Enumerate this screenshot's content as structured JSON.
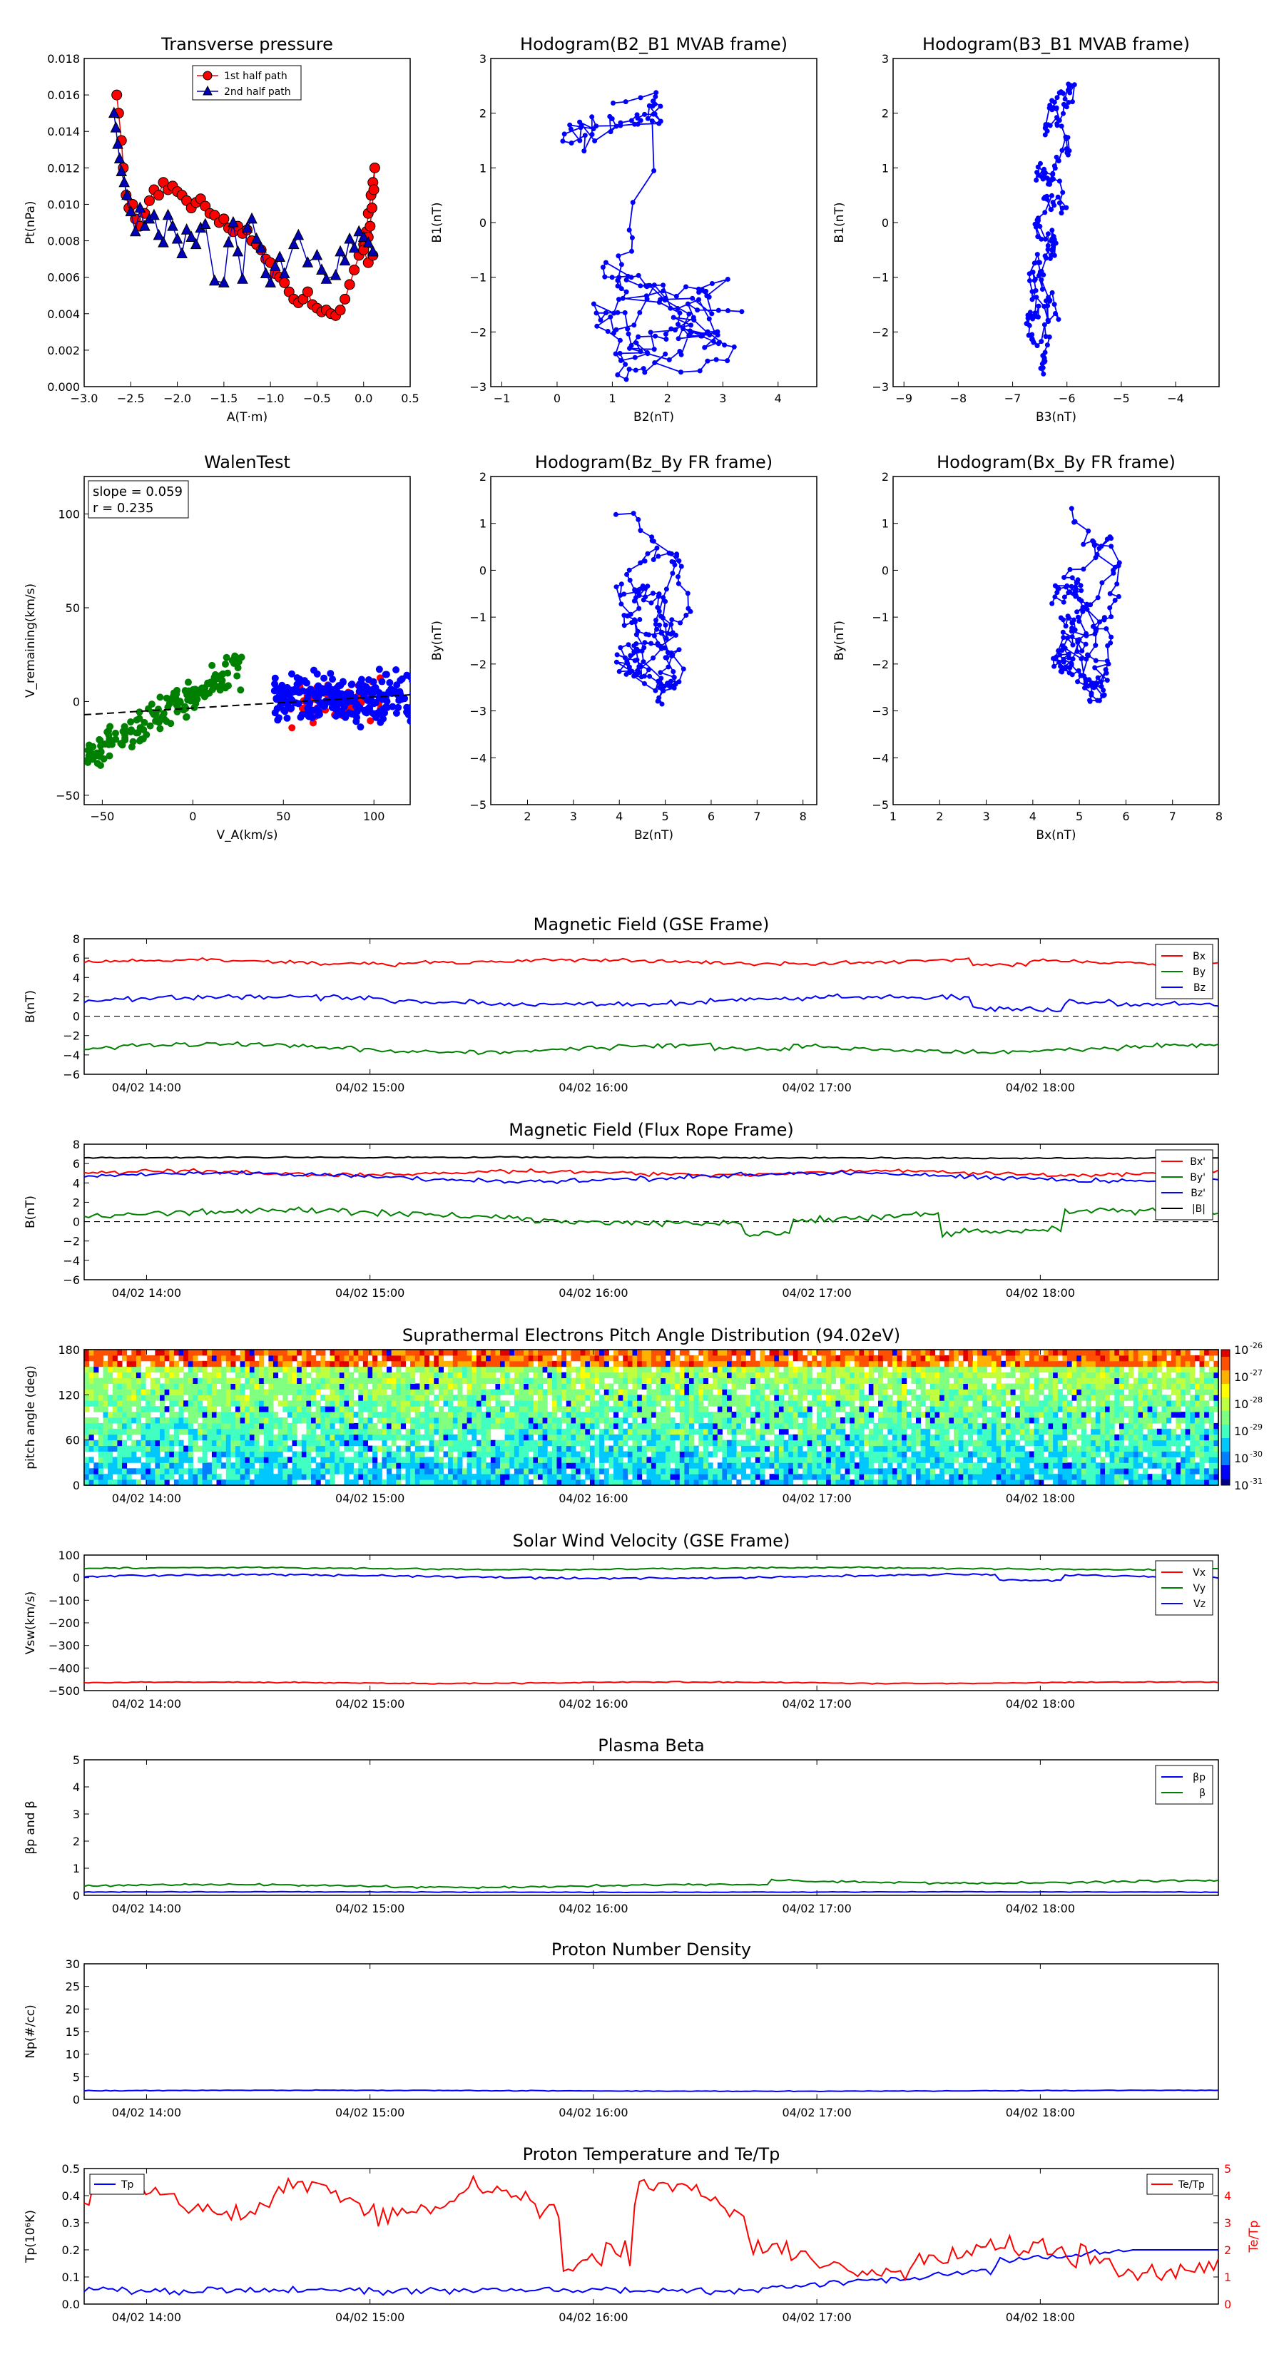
{
  "time_ticks": [
    "04/02 14:00",
    "04/02 15:00",
    "04/02 16:00",
    "04/02 17:00",
    "04/02 18:00"
  ],
  "chart_data": [
    {
      "id": "pt",
      "type": "scatter",
      "title": "Transverse pressure",
      "xlabel": "A(T·m)",
      "ylabel": "Pt(nPa)",
      "xlim": [
        -3.0,
        0.5
      ],
      "ylim": [
        0,
        0.018
      ],
      "xticks": [
        "−3.0",
        "−2.5",
        "−2.0",
        "−1.5",
        "−1.0",
        "−0.5",
        "0.0",
        "0.5"
      ],
      "yticks": [
        "0.000",
        "0.002",
        "0.004",
        "0.006",
        "0.008",
        "0.010",
        "0.012",
        "0.014",
        "0.016",
        "0.018"
      ],
      "legend": "upper center",
      "series": [
        {
          "name": "1st half path",
          "color": "#ff0000",
          "edge": "#000000",
          "marker": "circle",
          "points": [
            [
              -2.65,
              0.016
            ],
            [
              -2.63,
              0.015
            ],
            [
              -2.6,
              0.0135
            ],
            [
              -2.58,
              0.012
            ],
            [
              -2.55,
              0.0105
            ],
            [
              -2.52,
              0.0098
            ],
            [
              -2.48,
              0.01
            ],
            [
              -2.45,
              0.0092
            ],
            [
              -2.4,
              0.0088
            ],
            [
              -2.35,
              0.0095
            ],
            [
              -2.3,
              0.0102
            ],
            [
              -2.25,
              0.0108
            ],
            [
              -2.2,
              0.0105
            ],
            [
              -2.15,
              0.0112
            ],
            [
              -2.1,
              0.0108
            ],
            [
              -2.05,
              0.011
            ],
            [
              -2.0,
              0.0107
            ],
            [
              -1.95,
              0.0105
            ],
            [
              -1.9,
              0.0102
            ],
            [
              -1.85,
              0.0098
            ],
            [
              -1.8,
              0.0101
            ],
            [
              -1.75,
              0.0103
            ],
            [
              -1.7,
              0.0099
            ],
            [
              -1.65,
              0.0095
            ],
            [
              -1.6,
              0.0094
            ],
            [
              -1.55,
              0.009
            ],
            [
              -1.5,
              0.0092
            ],
            [
              -1.45,
              0.0087
            ],
            [
              -1.4,
              0.0085
            ],
            [
              -1.35,
              0.0088
            ],
            [
              -1.3,
              0.0084
            ],
            [
              -1.25,
              0.0086
            ],
            [
              -1.2,
              0.008
            ],
            [
              -1.15,
              0.0078
            ],
            [
              -1.1,
              0.0075
            ],
            [
              -1.05,
              0.007
            ],
            [
              -1.0,
              0.0068
            ],
            [
              -0.95,
              0.0062
            ],
            [
              -0.9,
              0.006
            ],
            [
              -0.85,
              0.0057
            ],
            [
              -0.8,
              0.0052
            ],
            [
              -0.75,
              0.0048
            ],
            [
              -0.7,
              0.0046
            ],
            [
              -0.65,
              0.0048
            ],
            [
              -0.6,
              0.0052
            ],
            [
              -0.55,
              0.0045
            ],
            [
              -0.5,
              0.0043
            ],
            [
              -0.45,
              0.0041
            ],
            [
              -0.4,
              0.0042
            ],
            [
              -0.35,
              0.004
            ],
            [
              -0.3,
              0.0039
            ],
            [
              -0.25,
              0.0042
            ],
            [
              -0.2,
              0.0048
            ],
            [
              -0.15,
              0.0056
            ],
            [
              -0.1,
              0.0064
            ],
            [
              -0.05,
              0.0072
            ],
            [
              0.0,
              0.0078
            ],
            [
              0.03,
              0.0085
            ],
            [
              0.05,
              0.0095
            ],
            [
              0.08,
              0.0105
            ],
            [
              0.1,
              0.0112
            ],
            [
              0.12,
              0.012
            ],
            [
              0.11,
              0.0108
            ],
            [
              0.09,
              0.0098
            ],
            [
              0.07,
              0.0088
            ],
            [
              0.05,
              0.0082
            ],
            [
              0.02,
              0.0078
            ],
            [
              0.0,
              0.0075
            ],
            [
              0.05,
              0.0068
            ],
            [
              0.1,
              0.0072
            ]
          ]
        },
        {
          "name": "2nd half path",
          "color": "#0000bb",
          "edge": "#000000",
          "marker": "triangle",
          "points": [
            [
              -2.68,
              0.015
            ],
            [
              -2.66,
              0.0142
            ],
            [
              -2.64,
              0.0133
            ],
            [
              -2.62,
              0.0125
            ],
            [
              -2.6,
              0.0118
            ],
            [
              -2.57,
              0.0112
            ],
            [
              -2.54,
              0.0105
            ],
            [
              -2.5,
              0.0096
            ],
            [
              -2.45,
              0.0085
            ],
            [
              -2.4,
              0.0098
            ],
            [
              -2.35,
              0.0088
            ],
            [
              -2.3,
              0.0092
            ],
            [
              -2.25,
              0.0094
            ],
            [
              -2.2,
              0.0083
            ],
            [
              -2.15,
              0.0079
            ],
            [
              -2.1,
              0.0094
            ],
            [
              -2.05,
              0.0088
            ],
            [
              -2.0,
              0.0081
            ],
            [
              -1.95,
              0.0073
            ],
            [
              -1.9,
              0.0086
            ],
            [
              -1.85,
              0.0082
            ],
            [
              -1.8,
              0.0078
            ],
            [
              -1.75,
              0.0087
            ],
            [
              -1.7,
              0.0089
            ],
            [
              -1.6,
              0.0058
            ],
            [
              -1.5,
              0.0057
            ],
            [
              -1.45,
              0.0079
            ],
            [
              -1.4,
              0.009
            ],
            [
              -1.35,
              0.0074
            ],
            [
              -1.3,
              0.0059
            ],
            [
              -1.25,
              0.0087
            ],
            [
              -1.2,
              0.0092
            ],
            [
              -1.15,
              0.0081
            ],
            [
              -1.1,
              0.0076
            ],
            [
              -1.05,
              0.0062
            ],
            [
              -1.0,
              0.0057
            ],
            [
              -0.95,
              0.0066
            ],
            [
              -0.9,
              0.0071
            ],
            [
              -0.85,
              0.0062
            ],
            [
              -0.75,
              0.0078
            ],
            [
              -0.7,
              0.0083
            ],
            [
              -0.6,
              0.0068
            ],
            [
              -0.5,
              0.0072
            ],
            [
              -0.45,
              0.0064
            ],
            [
              -0.4,
              0.0059
            ],
            [
              -0.3,
              0.0061
            ],
            [
              -0.25,
              0.0074
            ],
            [
              -0.2,
              0.0069
            ],
            [
              -0.15,
              0.0081
            ],
            [
              -0.1,
              0.0076
            ],
            [
              -0.05,
              0.0085
            ],
            [
              0.0,
              0.0082
            ],
            [
              0.05,
              0.0079
            ],
            [
              0.1,
              0.0074
            ]
          ]
        }
      ]
    },
    {
      "id": "h21",
      "type": "line",
      "title": "Hodogram(B2_B1 MVAB frame)",
      "xlabel": "B2(nT)",
      "ylabel": "B1(nT)",
      "xlim": [
        -1.2,
        4.7
      ],
      "ylim": [
        -3,
        3
      ],
      "xticks": [
        "−1",
        "0",
        "1",
        "2",
        "3",
        "4"
      ],
      "yticks": [
        "−3",
        "−2",
        "−1",
        "0",
        "1",
        "2",
        "3"
      ],
      "color": "#0000ff"
    },
    {
      "id": "h31",
      "type": "line",
      "title": "Hodogram(B3_B1 MVAB frame)",
      "xlabel": "B3(nT)",
      "ylabel": "B1(nT)",
      "xlim": [
        -9.2,
        -3.2
      ],
      "ylim": [
        -3,
        3
      ],
      "xticks": [
        "−9",
        "−8",
        "−7",
        "−6",
        "−5",
        "−4"
      ],
      "yticks": [
        "−3",
        "−2",
        "−1",
        "0",
        "1",
        "2",
        "3"
      ],
      "color": "#0000ff"
    },
    {
      "id": "walen",
      "type": "scatter",
      "title": "WalenTest",
      "xlabel": "V_A(km/s)",
      "ylabel": "V_remaining(km/s)",
      "xlim": [
        -60,
        120
      ],
      "ylim": [
        -55,
        120
      ],
      "xticks": [
        "−50",
        "0",
        "50",
        "100"
      ],
      "yticks": [
        "−50",
        "0",
        "50",
        "100"
      ],
      "annotation": [
        "slope = 0.059",
        "r = 0.235"
      ],
      "fit": {
        "slope": 0.059,
        "intercept": -3.5
      }
    },
    {
      "id": "hzy",
      "type": "line",
      "title": "Hodogram(Bz_By FR frame)",
      "xlabel": "Bz(nT)",
      "ylabel": "By(nT)",
      "xlim": [
        1.2,
        8.3
      ],
      "ylim": [
        -5,
        2
      ],
      "xticks": [
        "2",
        "3",
        "4",
        "5",
        "6",
        "7",
        "8"
      ],
      "yticks": [
        "−5",
        "−4",
        "−3",
        "−2",
        "−1",
        "0",
        "1",
        "2"
      ],
      "color": "#0000ff"
    },
    {
      "id": "hxy",
      "type": "line",
      "title": "Hodogram(Bx_By FR frame)",
      "xlabel": "Bx(nT)",
      "ylabel": "By(nT)",
      "xlim": [
        1,
        8
      ],
      "ylim": [
        -5,
        2
      ],
      "xticks": [
        "1",
        "2",
        "3",
        "4",
        "5",
        "6",
        "7",
        "8"
      ],
      "yticks": [
        "−5",
        "−4",
        "−3",
        "−2",
        "−1",
        "0",
        "1",
        "2"
      ],
      "color": "#0000ff"
    },
    {
      "id": "bgse",
      "type": "line",
      "title": "Magnetic Field (GSE Frame)",
      "ylabel": "B(nT)",
      "ylim": [
        -6,
        8
      ],
      "yticks": [
        "−6",
        "−4",
        "−2",
        "0",
        "2",
        "4",
        "6",
        "8"
      ],
      "legend": "upper right",
      "series": [
        {
          "name": "Bx",
          "color": "#ff0000",
          "base": 5.6,
          "amp": 0.5
        },
        {
          "name": "By",
          "color": "#008000",
          "base": -3.3,
          "amp": 0.6
        },
        {
          "name": "Bz",
          "color": "#0000ff",
          "base": 1.6,
          "amp": 0.7
        }
      ]
    },
    {
      "id": "bfr",
      "type": "line",
      "title": "Magnetic Field (Flux Rope Frame)",
      "ylabel": "B(nT)",
      "ylim": [
        -6,
        8
      ],
      "yticks": [
        "−6",
        "−4",
        "−2",
        "0",
        "2",
        "4",
        "6",
        "8"
      ],
      "legend": "upper right",
      "series": [
        {
          "name": "Bx'",
          "color": "#ff0000",
          "base": 5.0,
          "amp": 0.5
        },
        {
          "name": "By'",
          "color": "#008000",
          "base": 0.5,
          "amp": 0.8
        },
        {
          "name": "Bz'",
          "color": "#0000ff",
          "base": 4.6,
          "amp": 0.6
        },
        {
          "name": "|B|",
          "color": "#000000",
          "base": 6.6,
          "amp": 0.15
        }
      ]
    },
    {
      "id": "pad",
      "type": "heatmap",
      "title": "Suprathermal Electrons Pitch Angle Distribution (94.02eV)",
      "ylabel": "pitch angle (deg)",
      "ylim": [
        0,
        180
      ],
      "yticks": [
        "0",
        "60",
        "120",
        "180"
      ],
      "colorbar": [
        "10",
        "10",
        "10",
        "10",
        "10",
        "10"
      ],
      "colorbar_exp": [
        "-31",
        "-30",
        "-29",
        "-28",
        "-27",
        "-26"
      ]
    },
    {
      "id": "vsw",
      "type": "line",
      "title": "Solar Wind Velocity (GSE Frame)",
      "ylabel": "Vsw(km/s)",
      "ylim": [
        -500,
        100
      ],
      "yticks": [
        "−500",
        "−400",
        "−300",
        "−200",
        "−100",
        "0",
        "100"
      ],
      "legend": "upper right",
      "series": [
        {
          "name": "Vx",
          "color": "#ff0000",
          "base": -465,
          "amp": 6
        },
        {
          "name": "Vy",
          "color": "#008000",
          "base": 40,
          "amp": 8
        },
        {
          "name": "Vz",
          "color": "#0000ff",
          "base": 5,
          "amp": 12
        }
      ]
    },
    {
      "id": "beta",
      "type": "line",
      "title": "Plasma Beta",
      "ylabel": "βp and β",
      "ylim": [
        0,
        5
      ],
      "yticks": [
        "0",
        "1",
        "2",
        "3",
        "4",
        "5"
      ],
      "legend": "upper right",
      "series": [
        {
          "name": "βp",
          "color": "#0000ff",
          "base": 0.12,
          "amp": 0.03
        },
        {
          "name": "β",
          "color": "#008000",
          "base": 0.35,
          "amp": 0.1
        }
      ]
    },
    {
      "id": "np",
      "type": "line",
      "title": "Proton Number Density",
      "ylabel": "Np(#/cc)",
      "ylim": [
        0,
        30
      ],
      "yticks": [
        "0",
        "5",
        "10",
        "15",
        "20",
        "25",
        "30"
      ],
      "series": [
        {
          "name": "",
          "color": "#0000ff",
          "base": 1.9,
          "amp": 0.2
        }
      ]
    },
    {
      "id": "tp",
      "type": "line",
      "title": "Proton Temperature and Te/Tp",
      "ylabel": "Tp(10⁶K)",
      "ylim": [
        0,
        0.5
      ],
      "yticks": [
        "0.0",
        "0.1",
        "0.2",
        "0.3",
        "0.4",
        "0.5"
      ],
      "y2label": "Te/Tp",
      "y2lim": [
        0,
        5
      ],
      "y2ticks": [
        "0",
        "1",
        "2",
        "3",
        "4",
        "5"
      ],
      "series": [
        {
          "name": "Tp",
          "color": "#0000ff",
          "axis": "left"
        },
        {
          "name": "Te/Tp",
          "color": "#ff0000",
          "axis": "right"
        }
      ]
    }
  ]
}
